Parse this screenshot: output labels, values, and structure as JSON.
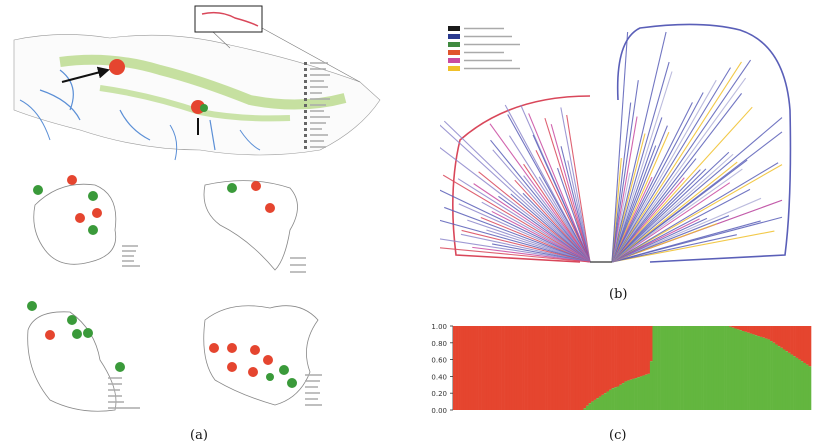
{
  "figure": {
    "captions": {
      "a": "(a)",
      "b": "(b)",
      "c": "(c)"
    },
    "colors": {
      "red": "#e5452f",
      "green": "#3a9a3a",
      "river": "#5b8fd6",
      "green_region": "#9acb55",
      "clade_red": "#d9475a",
      "clade_blue": "#5a5fb8"
    },
    "tree_legend": {
      "colors": [
        "#1a1a1a",
        "#2a3a8f",
        "#3f8a3f",
        "#e0542c",
        "#c94aa0",
        "#f0c02a"
      ]
    }
  },
  "chart_data": {
    "type": "area",
    "ylim": [
      0,
      1
    ],
    "yticks": [
      "0.00",
      "0.20",
      "0.40",
      "0.60",
      "0.80",
      "1.00"
    ],
    "n_individuals": 140,
    "series": [
      {
        "color": "#e5452f"
      },
      {
        "color": "#63b63f"
      }
    ],
    "red_fraction": [
      1,
      1,
      1,
      1,
      1,
      1,
      1,
      1,
      1,
      1,
      1,
      1,
      1,
      1,
      1,
      1,
      1,
      1,
      1,
      1,
      1,
      1,
      1,
      1,
      1,
      1,
      1,
      1,
      1,
      1,
      1,
      1,
      1,
      1,
      1,
      1,
      1,
      1,
      1,
      1,
      1,
      1,
      1,
      1,
      1,
      1,
      1,
      1,
      1,
      1,
      1,
      0.98,
      0.95,
      0.92,
      0.9,
      0.88,
      0.86,
      0.84,
      0.82,
      0.8,
      0.78,
      0.76,
      0.74,
      0.73,
      0.72,
      0.7,
      0.68,
      0.66,
      0.65,
      0.64,
      0.63,
      0.62,
      0.61,
      0.6,
      0.59,
      0.58,
      0.57,
      0.42,
      0,
      0,
      0,
      0,
      0,
      0,
      0,
      0,
      0,
      0,
      0,
      0,
      0,
      0,
      0,
      0,
      0,
      0,
      0,
      0,
      0,
      0,
      0,
      0,
      0,
      0,
      0,
      0,
      0,
      0,
      0.01,
      0.02,
      0.03,
      0.04,
      0.05,
      0.06,
      0.07,
      0.08,
      0.09,
      0.1,
      0.11,
      0.12,
      0.13,
      0.14,
      0.15,
      0.16,
      0.18,
      0.2,
      0.22,
      0.24,
      0.26,
      0.28,
      0.3,
      0.32,
      0.34,
      0.36,
      0.38,
      0.4,
      0.42,
      0.44,
      0.46,
      0.48
    ]
  }
}
